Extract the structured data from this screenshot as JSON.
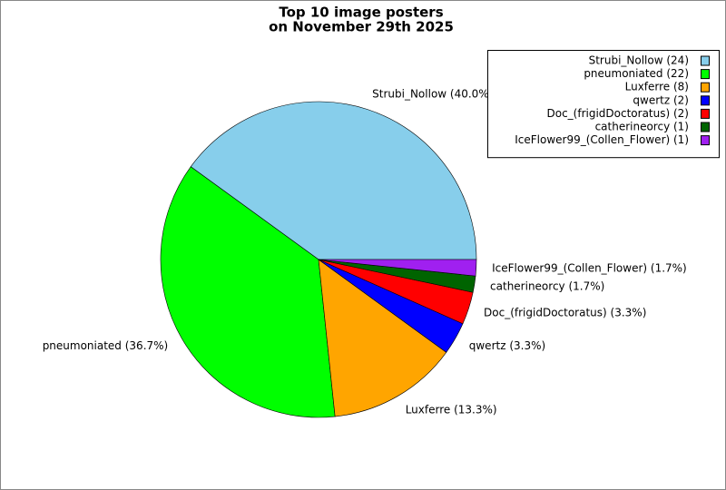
{
  "chart_data": {
    "type": "pie",
    "title_lines": [
      "Top 10 image posters",
      "on November 29th 2025"
    ],
    "categories": [
      "Strubi_Nollow",
      "pneumoniated",
      "Luxferre",
      "qwertz",
      "Doc_(frigidDoctoratus)",
      "catherineorcy",
      "IceFlower99_(Collen_Flower)"
    ],
    "values": [
      24,
      22,
      8,
      2,
      2,
      1,
      1
    ],
    "legend_labels": [
      "Strubi_Nollow (24)",
      "pneumoniated (22)",
      "Luxferre (8)",
      "qwertz (2)",
      "Doc_(frigidDoctoratus) (2)",
      "catherineorcy (1)",
      "IceFlower99_(Collen_Flower) (1)"
    ],
    "slice_labels": [
      "Strubi_Nollow (40.0%)",
      "pneumoniated (36.7%)",
      "Luxferre (13.3%)",
      "qwertz (3.3%)",
      "Doc_(frigidDoctoratus) (3.3%)",
      "catherineorcy (1.7%)",
      "IceFlower99_(Collen_Flower) (1.7%)"
    ],
    "colors": [
      "#87ceeb",
      "#00ff00",
      "#ffa500",
      "#0000ff",
      "#ff0000",
      "#006400",
      "#a020f0"
    ],
    "legend": "upper right"
  }
}
